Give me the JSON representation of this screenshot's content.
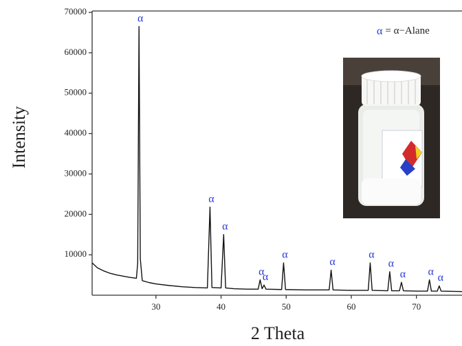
{
  "chart_data": {
    "type": "line",
    "xlabel": "2 Theta",
    "ylabel": "Intensity",
    "color": "#111111",
    "x": [
      20.2,
      21,
      22,
      23,
      24,
      25,
      26,
      27,
      27.2,
      27.4,
      27.6,
      27.9,
      29,
      30,
      32,
      34,
      36,
      37.9,
      38.3,
      38.6,
      40.0,
      40.4,
      40.7,
      42,
      44,
      45.7,
      46.0,
      46.3,
      46.6,
      46.9,
      49.3,
      49.6,
      49.9,
      53,
      56.6,
      56.9,
      57.2,
      60,
      62.6,
      62.9,
      63.2,
      65.6,
      65.9,
      66.2,
      67.4,
      67.7,
      68.0,
      70,
      71.7,
      72.0,
      72.3,
      73.2,
      73.5,
      73.8,
      77
    ],
    "values": [
      8000,
      6800,
      6000,
      5400,
      5000,
      4700,
      4400,
      4200,
      8000,
      66500,
      9000,
      3600,
      3100,
      2800,
      2400,
      2100,
      1900,
      1800,
      21800,
      1900,
      1800,
      15000,
      1800,
      1600,
      1500,
      1500,
      3800,
      1600,
      2500,
      1500,
      1400,
      8000,
      1400,
      1300,
      1300,
      6200,
      1300,
      1200,
      1200,
      8000,
      1200,
      1100,
      5800,
      1100,
      1100,
      3200,
      1100,
      1000,
      1000,
      3800,
      1000,
      1000,
      2300,
      1000,
      900
    ],
    "xlim": [
      20.2,
      77
    ],
    "ylim": [
      0,
      70000
    ],
    "xticks": [
      30,
      40,
      50,
      60,
      70
    ],
    "yticks": [
      10000,
      20000,
      30000,
      40000,
      50000,
      60000,
      70000
    ],
    "annotations": [
      {
        "text": "α",
        "x": 27.4,
        "y": 66500
      },
      {
        "text": "α",
        "x": 38.3,
        "y": 21800
      },
      {
        "text": "α",
        "x": 40.4,
        "y": 15000
      },
      {
        "text": "α",
        "x": 46.0,
        "y": 3800
      },
      {
        "text": "α",
        "x": 46.6,
        "y": 2500
      },
      {
        "text": "α",
        "x": 49.6,
        "y": 8000
      },
      {
        "text": "α",
        "x": 56.9,
        "y": 6200
      },
      {
        "text": "α",
        "x": 62.9,
        "y": 8000
      },
      {
        "text": "α",
        "x": 65.9,
        "y": 5800
      },
      {
        "text": "α",
        "x": 67.7,
        "y": 3200
      },
      {
        "text": "α",
        "x": 72.0,
        "y": 3800
      },
      {
        "text": "α",
        "x": 73.5,
        "y": 2300
      }
    ],
    "key": {
      "symbol": "α",
      "label": "= α−Alane"
    }
  }
}
